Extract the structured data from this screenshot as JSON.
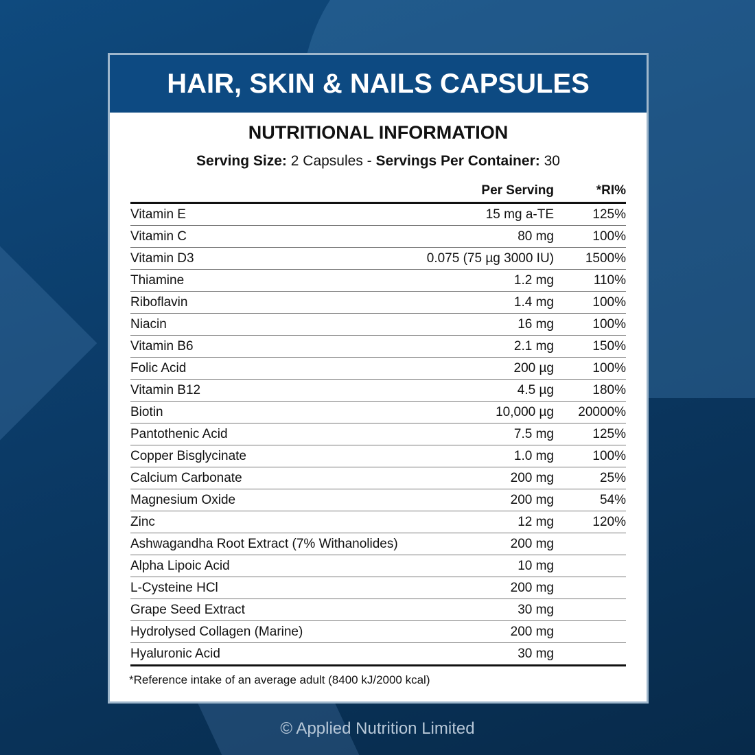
{
  "title": "HAIR, SKIN & NAILS CAPSULES",
  "subtitle": "NUTRITIONAL INFORMATION",
  "serving": {
    "size_label": "Serving Size:",
    "size_value": " 2 Capsules - ",
    "per_container_label": " Servings Per Container:",
    "per_container_value": " 30"
  },
  "table": {
    "headers": [
      "",
      "Per Serving",
      "*RI%"
    ],
    "rows": [
      [
        "Vitamin E",
        "15 mg a-TE",
        "125%"
      ],
      [
        "Vitamin C",
        "80 mg",
        "100%"
      ],
      [
        "Vitamin D3",
        "0.075 (75 µg 3000 IU)",
        "1500%"
      ],
      [
        "Thiamine",
        "1.2 mg",
        "110%"
      ],
      [
        "Riboflavin",
        "1.4 mg",
        "100%"
      ],
      [
        "Niacin",
        "16 mg",
        "100%"
      ],
      [
        "Vitamin B6",
        "2.1 mg",
        "150%"
      ],
      [
        "Folic Acid",
        "200 µg",
        "100%"
      ],
      [
        "Vitamin B12",
        "4.5 µg",
        "180%"
      ],
      [
        "Biotin",
        "10,000 µg",
        "20000%"
      ],
      [
        "Pantothenic Acid",
        "7.5 mg",
        "125%"
      ],
      [
        "Copper Bisglycinate",
        "1.0 mg",
        "100%"
      ],
      [
        "Calcium Carbonate",
        "200 mg",
        "25%"
      ],
      [
        "Magnesium Oxide",
        "200 mg",
        "54%"
      ],
      [
        "Zinc",
        "12 mg",
        "120%"
      ],
      [
        "Ashwagandha Root Extract (7% Withanolides)",
        "200 mg",
        ""
      ],
      [
        "Alpha Lipoic Acid",
        "10 mg",
        ""
      ],
      [
        "L-Cysteine HCl",
        "200 mg",
        ""
      ],
      [
        "Grape Seed Extract",
        "30 mg",
        ""
      ],
      [
        "Hydrolysed Collagen (Marine)",
        "200 mg",
        ""
      ],
      [
        "Hyaluronic Acid",
        "30 mg",
        ""
      ]
    ]
  },
  "footnote": "*Reference intake of an average adult (8400 kJ/2000 kcal)",
  "copyright": "© Applied Nutrition Limited",
  "colors": {
    "banner": "#0d4a82",
    "background": "#0b3a66"
  }
}
